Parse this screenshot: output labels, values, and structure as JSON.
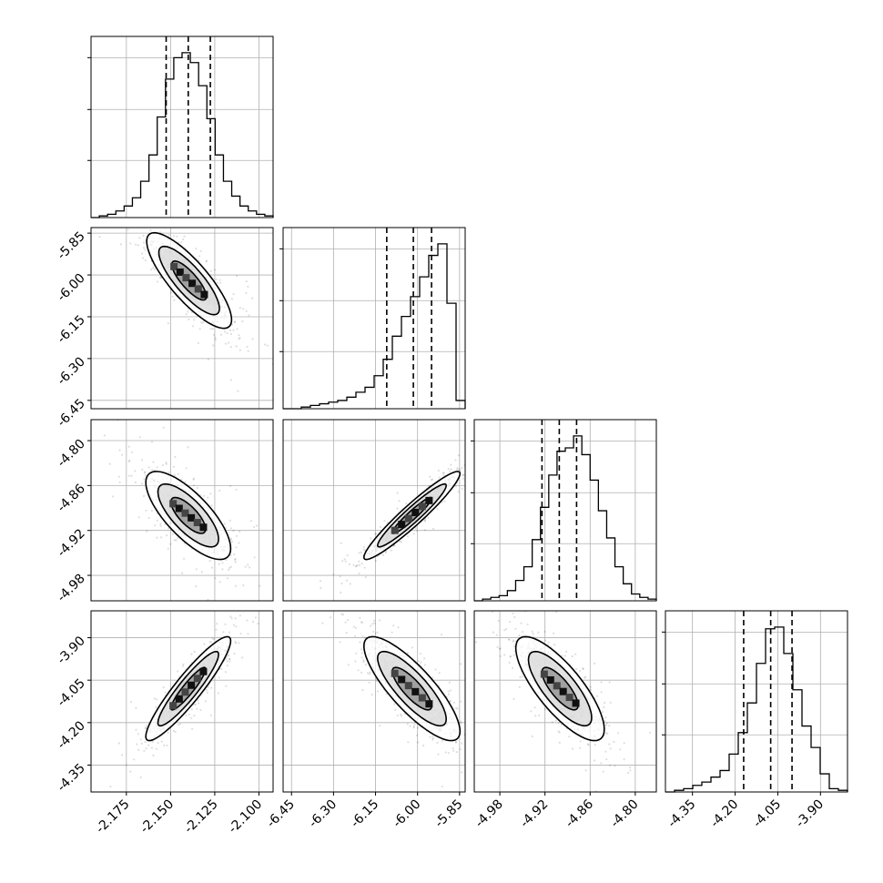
{
  "chart_data": {
    "type": "corner",
    "grid": true,
    "parameters": [
      {
        "range": [
          -2.195,
          -2.092
        ],
        "ticks": [
          "-2.175",
          "-2.150",
          "-2.125",
          "-2.100"
        ],
        "tick_values": [
          -2.175,
          -2.15,
          -2.125,
          -2.1
        ],
        "quantiles": [
          -2.1525,
          -2.14,
          -2.1275
        ]
      },
      {
        "range": [
          -6.48,
          -5.83
        ],
        "ticks": [
          "-6.45",
          "-6.30",
          "-6.15",
          "-6.00",
          "-5.85"
        ],
        "tick_values": [
          -6.45,
          -6.3,
          -6.15,
          -6.0,
          -5.85
        ],
        "quantiles": [
          -6.11,
          -6.015,
          -5.95
        ]
      },
      {
        "range": [
          -5.014,
          -4.772
        ],
        "ticks": [
          "-4.98",
          "-4.92",
          "-4.86",
          "-4.80"
        ],
        "tick_values": [
          -4.98,
          -4.92,
          -4.86,
          -4.8
        ],
        "quantiles": [
          -4.924,
          -4.901,
          -4.878
        ]
      },
      {
        "range": [
          -4.445,
          -3.805
        ],
        "ticks": [
          "-4.35",
          "-4.20",
          "-4.05",
          "-3.90"
        ],
        "tick_values": [
          -4.35,
          -4.2,
          -4.05,
          -3.9
        ],
        "quantiles": [
          -4.17,
          -4.075,
          -4.0
        ]
      }
    ],
    "histograms": [
      [
        0,
        0.01,
        0.02,
        0.04,
        0.07,
        0.12,
        0.22,
        0.38,
        0.61,
        0.84,
        0.97,
        1.0,
        0.94,
        0.8,
        0.6,
        0.38,
        0.22,
        0.13,
        0.07,
        0.04,
        0.02,
        0.01
      ],
      [
        0,
        0,
        0.01,
        0.02,
        0.03,
        0.04,
        0.05,
        0.07,
        0.1,
        0.13,
        0.2,
        0.3,
        0.44,
        0.56,
        0.68,
        0.8,
        0.93,
        1.0,
        0.64,
        0.05
      ],
      [
        0,
        0.01,
        0.02,
        0.03,
        0.06,
        0.12,
        0.2,
        0.36,
        0.55,
        0.74,
        0.88,
        0.9,
        0.97,
        0.86,
        0.71,
        0.53,
        0.37,
        0.2,
        0.1,
        0.04,
        0.02,
        0.01
      ],
      [
        0,
        0.01,
        0.02,
        0.04,
        0.06,
        0.09,
        0.13,
        0.23,
        0.36,
        0.54,
        0.78,
        0.99,
        1.0,
        0.84,
        0.62,
        0.4,
        0.27,
        0.11,
        0.02,
        0.01
      ]
    ],
    "pairs": [
      {
        "row": 1,
        "col": 0,
        "mean": [
          -2.1395,
          -6.02
        ],
        "sd": [
          0.0098,
          0.07
        ],
        "corr": -0.82
      },
      {
        "row": 2,
        "col": 0,
        "mean": [
          -2.14,
          -4.9
        ],
        "sd": [
          0.0098,
          0.024
        ],
        "corr": -0.75
      },
      {
        "row": 2,
        "col": 1,
        "mean": [
          -6.02,
          -4.9
        ],
        "sd": [
          0.07,
          0.024
        ],
        "corr": 0.95
      },
      {
        "row": 3,
        "col": 0,
        "mean": [
          -2.14,
          -4.08
        ],
        "sd": [
          0.0098,
          0.075
        ],
        "corr": 0.92
      },
      {
        "row": 3,
        "col": 1,
        "mean": [
          -6.02,
          -4.08
        ],
        "sd": [
          0.07,
          0.075
        ],
        "corr": -0.82
      },
      {
        "row": 3,
        "col": 2,
        "mean": [
          -4.9,
          -4.08
        ],
        "sd": [
          0.024,
          0.075
        ],
        "corr": -0.78
      }
    ]
  }
}
